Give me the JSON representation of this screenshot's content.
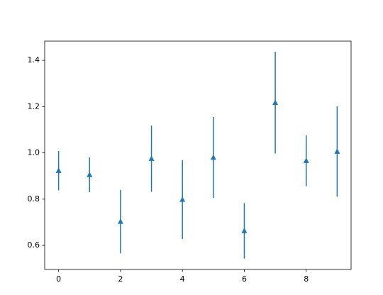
{
  "chart_data": {
    "type": "errorbar",
    "x": [
      0,
      1,
      2,
      3,
      4,
      5,
      6,
      7,
      8,
      9
    ],
    "series": [
      {
        "color": "#1f77b4",
        "values": [
          0.923,
          0.905,
          0.703,
          0.975,
          0.798,
          0.98,
          0.663,
          1.217,
          0.966,
          1.006
        ],
        "errors": [
          0.085,
          0.075,
          0.137,
          0.143,
          0.17,
          0.175,
          0.12,
          0.22,
          0.11,
          0.195
        ]
      }
    ],
    "xlim": [
      -0.45,
      9.45
    ],
    "ylim": [
      0.496,
      1.483
    ],
    "xticks": [
      0,
      2,
      4,
      6,
      8
    ],
    "yticks": [
      0.6,
      0.8,
      {
        "value": 1.0,
        "label": "1.0"
      },
      1.2,
      1.4
    ],
    "grid": false
  }
}
